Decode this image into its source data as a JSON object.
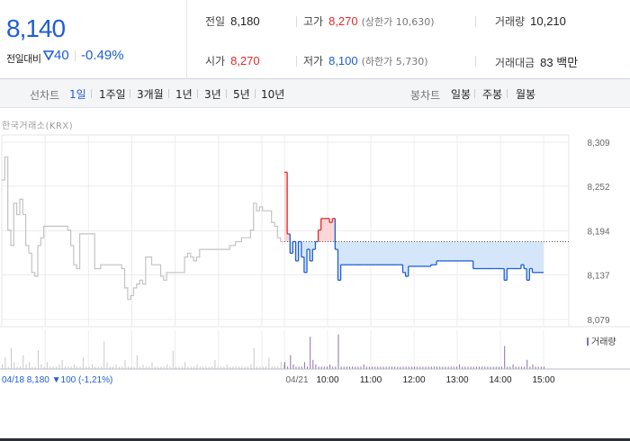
{
  "header": {
    "price": "8,140",
    "compare_label": "전일대비",
    "compare_icon": "down-triangle-icon",
    "compare_value": "40",
    "compare_rate": "-0.49%",
    "stats": {
      "prev_close": {
        "label": "전일",
        "value": "8,180"
      },
      "high": {
        "label": "고가",
        "value": "8,270",
        "sub": "(상한가 10,630)"
      },
      "volume": {
        "label": "거래량",
        "value": "10,210"
      },
      "open": {
        "label": "시가",
        "value": "8,270"
      },
      "low": {
        "label": "저가",
        "value": "8,100",
        "sub": "(하한가 5,730)"
      },
      "amount": {
        "label": "거래대금",
        "value": "83 백만"
      }
    }
  },
  "toolbar": {
    "line_label": "선차트",
    "line_periods": [
      "1일",
      "1주일",
      "3개월",
      "1년",
      "3년",
      "5년",
      "10년"
    ],
    "active_period": "1일",
    "candle_label": "봉차트",
    "candle_periods": [
      "일봉",
      "주봉",
      "월봉"
    ]
  },
  "chart": {
    "source": "한국거래소(KRX)",
    "volume_legend": "거래량",
    "footer_prev": "04/18  8,180 ▼100 (-1,21%)",
    "date_label": "04/21",
    "colors": {
      "up": "#e5292c",
      "down": "#1e5ed6",
      "prev": "#c3c3c3",
      "fill_down": "#d5e6fa",
      "fill_up": "#fad7d7",
      "volume": "#8a6fb3"
    }
  },
  "chart_data": {
    "type": "line",
    "y_ticks": [
      8079,
      8137,
      8194,
      8252,
      8309
    ],
    "ylim": [
      8079,
      8309
    ],
    "x_ticks": [
      "10:00",
      "11:00",
      "12:00",
      "13:00",
      "14:00",
      "15:00"
    ],
    "base_price": 8180,
    "prev_day_series": {
      "name": "04/18",
      "values": [
        8260,
        8290,
        8195,
        8175,
        8230,
        8215,
        8235,
        8215,
        8175,
        8165,
        8140,
        8135,
        8175,
        8185,
        8200,
        8200,
        8200,
        8200,
        8200,
        8200,
        8200,
        8200,
        8195,
        8175,
        8150,
        8145,
        8190,
        8190,
        8190,
        8190,
        8190,
        8145,
        8145,
        8150,
        8150,
        8150,
        8150,
        8150,
        8150,
        8150,
        8145,
        8120,
        8105,
        8110,
        8120,
        8125,
        8130,
        8125,
        8160,
        8160,
        8150,
        8150,
        8150,
        8135,
        8130,
        8140,
        8140,
        8140,
        8140,
        8140,
        8140,
        8160,
        8165,
        8160,
        8155,
        8160,
        8170,
        8170,
        8170,
        8170,
        8170,
        8170,
        8170,
        8170,
        8170,
        8170,
        8175,
        8175,
        8180,
        8180,
        8185,
        8185,
        8185,
        8195,
        8230,
        8220,
        8225,
        8220,
        8220,
        8220,
        8205,
        8200,
        8185,
        8180,
        8180
      ]
    },
    "today_series": {
      "name": "04/21",
      "values": [
        8270,
        8190,
        8165,
        8180,
        8155,
        8180,
        8160,
        8140,
        8170,
        8155,
        8170,
        8180,
        8195,
        8210,
        8210,
        8210,
        8205,
        8210,
        8170,
        8130,
        8150,
        8150,
        8150,
        8150,
        8150,
        8150,
        8150,
        8150,
        8150,
        8150,
        8150,
        8150,
        8150,
        8150,
        8150,
        8150,
        8150,
        8150,
        8150,
        8150,
        8150,
        8150,
        8140,
        8135,
        8148,
        8148,
        8148,
        8148,
        8148,
        8148,
        8148,
        8148,
        8150,
        8150,
        8155,
        8155,
        8155,
        8155,
        8155,
        8155,
        8155,
        8155,
        8155,
        8155,
        8155,
        8155,
        8155,
        8145,
        8145,
        8145,
        8145,
        8145,
        8145,
        8145,
        8145,
        8145,
        8145,
        8145,
        8130,
        8145,
        8145,
        8145,
        8145,
        8145,
        8150,
        8145,
        8130,
        8145,
        8140,
        8140,
        8140,
        8140,
        8140
      ]
    },
    "prev_volume": [
      2,
      5,
      1,
      9,
      3,
      1,
      1,
      6,
      2,
      3,
      1,
      1,
      8,
      2,
      1,
      3,
      1,
      1,
      1,
      2,
      4,
      1,
      1,
      1,
      2,
      1,
      1,
      5,
      1,
      1,
      2,
      1,
      1,
      1,
      12,
      3,
      1,
      1,
      2,
      1,
      1,
      4,
      1,
      1,
      1,
      6,
      1,
      2,
      1,
      1,
      3,
      1,
      1,
      1,
      1,
      2,
      1,
      8,
      1,
      1,
      1,
      3,
      1,
      1,
      1,
      2,
      1,
      1,
      1,
      1,
      1,
      4,
      1,
      1,
      1,
      2,
      1,
      1,
      1,
      1,
      1,
      1,
      1,
      2,
      9,
      1,
      1,
      1,
      1,
      5,
      1,
      1,
      1,
      3,
      2
    ],
    "today_volume": [
      3,
      1,
      6,
      2,
      1,
      1,
      1,
      3,
      1,
      14,
      4,
      2,
      1,
      1,
      1,
      1,
      2,
      1,
      1,
      15,
      1,
      1,
      1,
      1,
      1,
      1,
      1,
      1,
      2,
      1,
      1,
      1,
      1,
      1,
      1,
      1,
      1,
      1,
      1,
      1,
      1,
      1,
      1,
      1,
      1,
      1,
      1,
      1,
      1,
      1,
      1,
      1,
      1,
      1,
      1,
      1,
      1,
      1,
      1,
      1,
      1,
      1,
      2,
      1,
      1,
      1,
      1,
      1,
      1,
      1,
      1,
      1,
      1,
      1,
      1,
      1,
      1,
      1,
      10,
      1,
      1,
      2,
      1,
      1,
      1,
      1,
      4,
      1,
      2,
      1,
      1,
      1,
      1
    ]
  }
}
